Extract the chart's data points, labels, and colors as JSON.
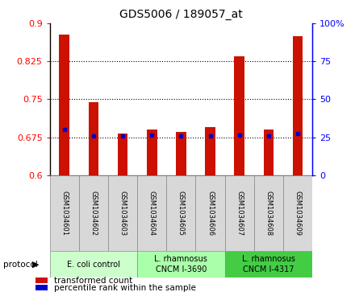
{
  "title": "GDS5006 / 189057_at",
  "samples": [
    "GSM1034601",
    "GSM1034602",
    "GSM1034603",
    "GSM1034604",
    "GSM1034605",
    "GSM1034606",
    "GSM1034607",
    "GSM1034608",
    "GSM1034609"
  ],
  "transformed_counts": [
    0.878,
    0.745,
    0.683,
    0.69,
    0.685,
    0.695,
    0.835,
    0.69,
    0.875
  ],
  "percentile_values": [
    0.69,
    0.678,
    0.677,
    0.679,
    0.678,
    0.678,
    0.679,
    0.677,
    0.682
  ],
  "ylim_left": [
    0.6,
    0.9
  ],
  "ylim_right": [
    0,
    100
  ],
  "yticks_left": [
    0.6,
    0.675,
    0.75,
    0.825,
    0.9
  ],
  "yticks_right": [
    0,
    25,
    50,
    75,
    100
  ],
  "bar_color": "#CC1100",
  "dot_color": "#0000CC",
  "protocols": [
    {
      "label": "E. coli control",
      "start": 0,
      "end": 3,
      "color": "#ccffcc"
    },
    {
      "label": "L. rhamnosus\nCNCM I-3690",
      "start": 3,
      "end": 6,
      "color": "#aaffaa"
    },
    {
      "label": "L. rhamnosus\nCNCM I-4317",
      "start": 6,
      "end": 9,
      "color": "#44cc44"
    }
  ],
  "legend_bar_label": "transformed count",
  "legend_dot_label": "percentile rank within the sample",
  "bar_width": 0.35,
  "base_value": 0.6,
  "grid_yticks": [
    0.675,
    0.75,
    0.825
  ]
}
